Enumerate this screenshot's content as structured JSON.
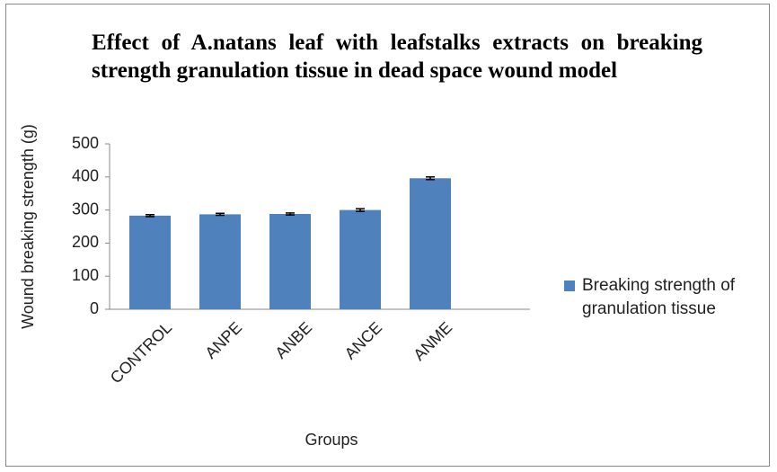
{
  "chart_data": {
    "type": "bar",
    "title": "Effect of A.natans leaf with leafstalks extracts on breaking strength granulation tissue in dead space wound model",
    "x_label": "Groups",
    "y_label": "Wound breaking strength (g)",
    "categories": [
      "CONTROL",
      "ANPE",
      "ANBE",
      "ANCE",
      "ANME"
    ],
    "series": [
      {
        "name": "Breaking strength of granulation tissue",
        "color": "#4f81bd",
        "values": [
          283,
          287,
          288,
          300,
          396
        ],
        "errors": [
          3,
          3,
          3,
          4,
          4
        ]
      }
    ],
    "ylim": [
      0,
      500
    ],
    "yticks": [
      0,
      100,
      200,
      300,
      400,
      500
    ],
    "grid": false,
    "legend": "right"
  }
}
